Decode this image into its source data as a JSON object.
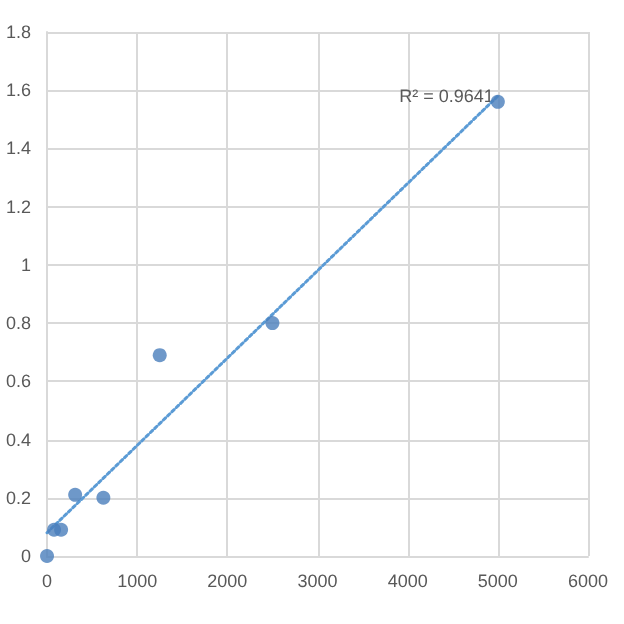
{
  "chart_data": {
    "type": "scatter",
    "xlim": [
      0,
      6000
    ],
    "xticks": [
      0,
      1000,
      2000,
      3000,
      4000,
      5000,
      6000
    ],
    "ylim": [
      0,
      1.8
    ],
    "yticks": [
      0,
      0.2,
      0.4,
      0.6,
      0.8,
      1,
      1.2,
      1.4,
      1.6,
      1.8
    ],
    "grid": true,
    "marker": "circle",
    "series": [
      {
        "type": "scatter",
        "color": "#4a7ebb",
        "x": [
          0,
          78,
          156,
          312,
          625,
          1250,
          2500,
          5000
        ],
        "values": [
          0,
          0.09,
          0.09,
          0.21,
          0.2,
          0.69,
          0.8,
          1.56
        ]
      },
      {
        "type": "line",
        "color": "#5b9bd5",
        "line_style": "dotted",
        "marker": "none",
        "x": [
          0,
          5000
        ],
        "values": [
          0.08,
          1.58
        ]
      }
    ],
    "annotations": [
      "R² = 0.9641"
    ]
  }
}
